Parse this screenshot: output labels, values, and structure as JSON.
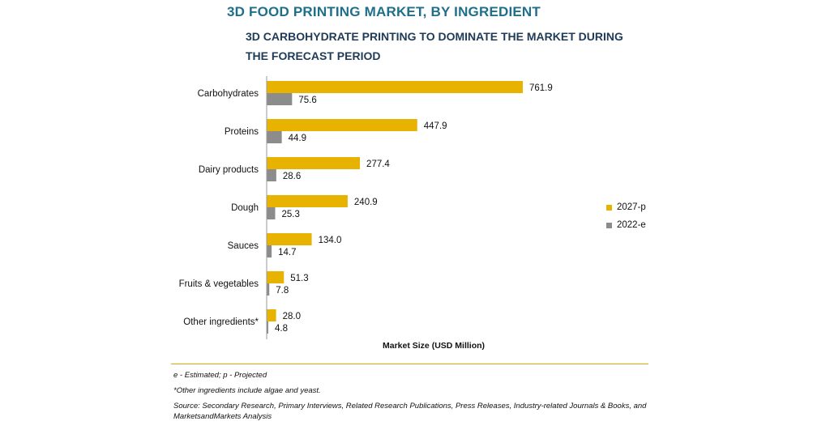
{
  "header": {
    "title": "3D FOOD PRINTING MARKET, BY INGREDIENT",
    "subtitle": "3D CARBOHYDRATE PRINTING TO DOMINATE THE MARKET DURING THE FORECAST PERIOD"
  },
  "chart_data": {
    "type": "bar",
    "orientation": "horizontal",
    "categories": [
      "Carbohydrates",
      "Proteins",
      "Dairy products",
      "Dough",
      "Sauces",
      "Fruits & vegetables",
      "Other ingredients*"
    ],
    "series": [
      {
        "name": "2027-p",
        "color": "#e8b200",
        "values": [
          761.9,
          447.9,
          277.4,
          240.9,
          134.0,
          51.3,
          28.0
        ]
      },
      {
        "name": "2022-e",
        "color": "#8c8c8c",
        "values": [
          75.6,
          44.9,
          28.6,
          25.3,
          14.7,
          7.8,
          4.8
        ]
      }
    ],
    "value_labels": [
      [
        "761.9",
        "447.9",
        "277.4",
        "240.9",
        "134.0",
        "51.3",
        "28.0"
      ],
      [
        "75.6",
        "44.9",
        "28.6",
        "25.3",
        "14.7",
        "7.8",
        "4.8"
      ]
    ],
    "xlabel": "Market Size (USD Million)",
    "legend_position": "right",
    "grid": false
  },
  "footer": {
    "note1": "e - Estimated; p - Projected",
    "note2": "*Other ingredients include algae and yeast.",
    "source": "Source: Secondary Research, Primary Interviews, Related Research Publications, Press Releases, Industry-related Journals & Books, and MarketsandMarkets Analysis"
  }
}
